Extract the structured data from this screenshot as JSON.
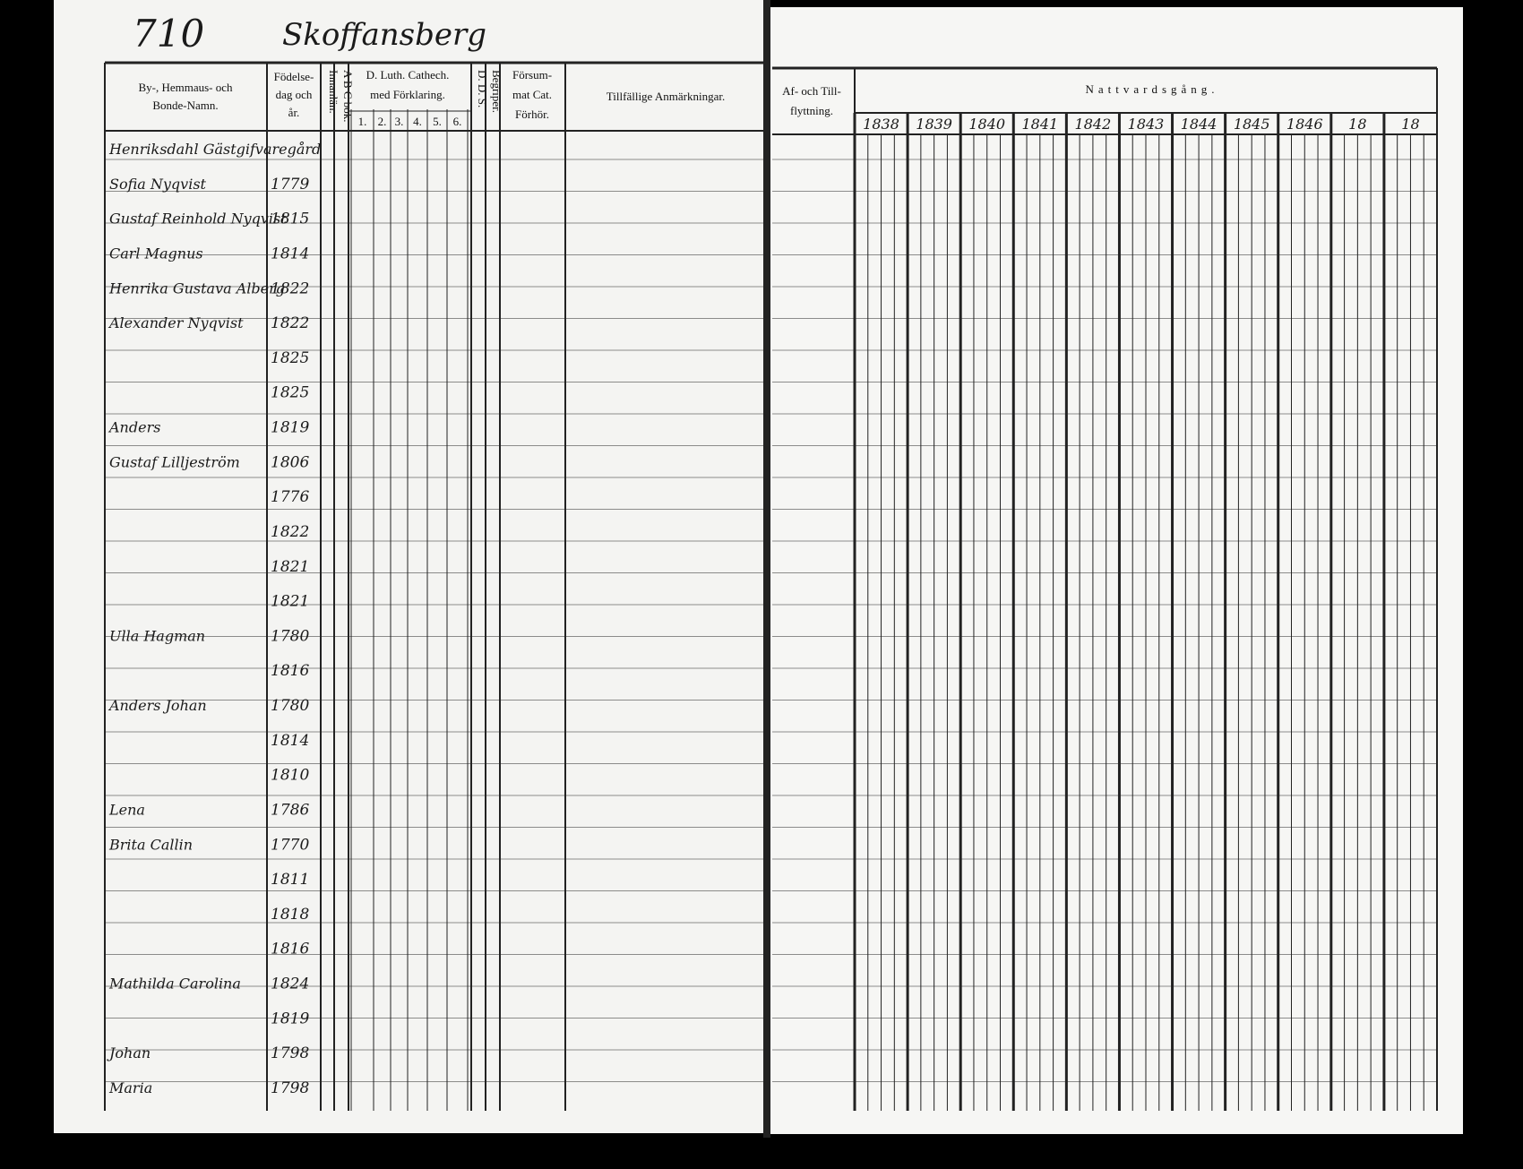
{
  "page": {
    "number": "710",
    "place": "Skoffansberg"
  },
  "left_header": {
    "name_col": [
      "By-, Hemmaus- och",
      "Bonde-Namn."
    ],
    "birth_col": [
      "Födelse-",
      "dag och",
      "år."
    ],
    "inmantan": "Innanlän.",
    "abc": "A B C bok.",
    "cathech": [
      "D. Luth. Cathech.",
      "med Förklaring."
    ],
    "cathech_parts": [
      "1.",
      "2.",
      "3.",
      "4.",
      "5.",
      "6."
    ],
    "dds": "D. D. S.",
    "begriper": "Begriper.",
    "forsummat": [
      "Försum-",
      "mat Cat.",
      "Förhör."
    ],
    "remarks": "Tillfällige Anmärkningar."
  },
  "right_header": {
    "moving": [
      "Af- och Till-",
      "flyttning."
    ],
    "title": "Nattvardsgång.",
    "years": [
      "1838",
      "1839",
      "1840",
      "1841",
      "1842",
      "1843",
      "1844",
      "1845",
      "1846",
      "18",
      "18"
    ]
  },
  "rows": [
    {
      "name": "Henriksdahl Gästgifvaregård"
    },
    {
      "name": "Sofia Nyqvist",
      "born": "1779"
    },
    {
      "name": "Gustaf Reinhold Nyqvist",
      "born": "1815"
    },
    {
      "name": "Carl Magnus",
      "born": "1814"
    },
    {
      "name": "Henrika Gustava Alberg",
      "born": "1822"
    },
    {
      "name": "Alexander Nyqvist",
      "born": "1822"
    },
    {
      "born": "1825"
    },
    {
      "born": "1825"
    },
    {
      "name": "Anders",
      "born": "1819"
    },
    {
      "name": "Gustaf Lilljeström",
      "born": "1806"
    },
    {
      "born": "1776"
    },
    {
      "born": "1822"
    },
    {
      "born": "1821"
    },
    {
      "born": "1821"
    },
    {
      "name": "Ulla Hagman",
      "born": "1780"
    },
    {
      "born": "1816"
    },
    {
      "name": "Anders Johan",
      "born": "1780"
    },
    {
      "born": "1814"
    },
    {
      "born": "1810"
    },
    {
      "name": "Lena",
      "born": "1786"
    },
    {
      "name": "Brita Callin",
      "born": "1770"
    },
    {
      "born": "1811"
    },
    {
      "born": "1818"
    },
    {
      "born": "1816"
    },
    {
      "name": "Mathilda Carolina",
      "born": "1824"
    },
    {
      "born": "1819"
    },
    {
      "name": "Johan",
      "born": "1798"
    },
    {
      "name": "Maria",
      "born": "1798"
    }
  ]
}
